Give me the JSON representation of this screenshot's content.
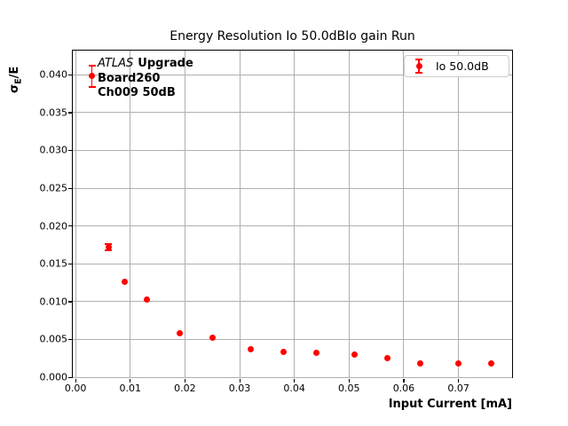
{
  "title": "Energy Resolution Io 50.0dBIo gain Run",
  "annotation": {
    "line1_italic": "ATLAS",
    "line1_bold": "Upgrade",
    "line2": "Board260",
    "line3": "Ch009 50dB"
  },
  "ylabel_parts": {
    "symbol": "σ",
    "subscript": "E",
    "rest": "/E"
  },
  "colors": {
    "series": "#ff0000",
    "grid": "#b0b0b0",
    "spine": "#000000",
    "legend_border": "#cccccc",
    "text": "#000000",
    "background": "#ffffff"
  },
  "chart_data": {
    "type": "scatter",
    "title": "Energy Resolution Io 50.0dBIo gain Run",
    "xlabel": "Input Current [mA]",
    "ylabel": "σE/E",
    "xlim": [
      -0.0005,
      0.0798
    ],
    "ylim": [
      0,
      0.0432
    ],
    "xticks": [
      0.0,
      0.01,
      0.02,
      0.03,
      0.04,
      0.05,
      0.06,
      0.07
    ],
    "xtick_labels": [
      "0.00",
      "0.01",
      "0.02",
      "0.03",
      "0.04",
      "0.05",
      "0.06",
      "0.07"
    ],
    "yticks": [
      0.0,
      0.005,
      0.01,
      0.015,
      0.02,
      0.025,
      0.03,
      0.035,
      0.04
    ],
    "ytick_labels": [
      "0.000",
      "0.005",
      "0.010",
      "0.015",
      "0.020",
      "0.025",
      "0.030",
      "0.035",
      "0.040"
    ],
    "grid": true,
    "legend_position": "upper right",
    "series": [
      {
        "name": "Io 50.0dB",
        "marker": "circle",
        "color": "#ff0000",
        "x": [
          0.003,
          0.006,
          0.009,
          0.013,
          0.019,
          0.025,
          0.032,
          0.038,
          0.044,
          0.051,
          0.057,
          0.063,
          0.07,
          0.076
        ],
        "y": [
          0.0398,
          0.0172,
          0.0126,
          0.0103,
          0.0058,
          0.0052,
          0.0037,
          0.0033,
          0.0032,
          0.003,
          0.0025,
          0.0018,
          0.0018,
          0.0018
        ],
        "yerr": [
          0.0014,
          0.0004,
          0.0001,
          0.0001,
          0.0001,
          0.0001,
          0.0001,
          0.0001,
          0.0001,
          0.0001,
          0.0001,
          0.0001,
          0.0001,
          0.0001
        ]
      }
    ]
  }
}
